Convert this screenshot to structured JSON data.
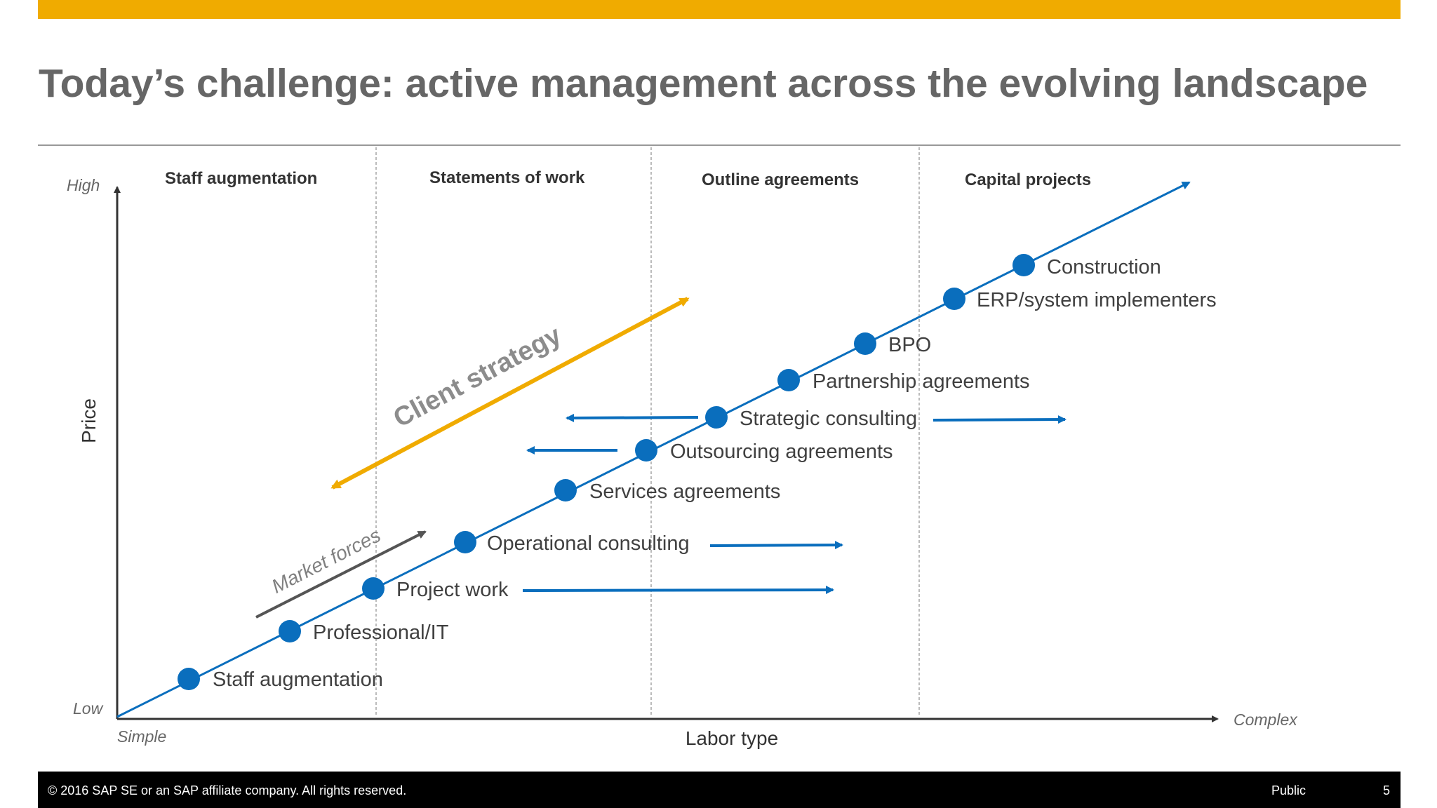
{
  "slide": {
    "title": "Today’s challenge: active management across the evolving landscape",
    "accent_color": "#f0ab00"
  },
  "diagram": {
    "columns": [
      {
        "label": "Staff augmentation"
      },
      {
        "label": "Statements of work"
      },
      {
        "label": "Outline agreements"
      },
      {
        "label": "Capital projects"
      }
    ],
    "y_axis": {
      "label": "Price",
      "high": "High",
      "low": "Low"
    },
    "x_axis": {
      "label": "Labor type",
      "left": "Simple",
      "right": "Complex"
    },
    "points": [
      {
        "label": "Staff augmentation"
      },
      {
        "label": "Professional/IT"
      },
      {
        "label": "Project work"
      },
      {
        "label": "Operational consulting"
      },
      {
        "label": "Services agreements"
      },
      {
        "label": "Outsourcing agreements"
      },
      {
        "label": "Strategic consulting"
      },
      {
        "label": "Partnership agreements"
      },
      {
        "label": "BPO"
      },
      {
        "label": "ERP/system implementers"
      },
      {
        "label": "Construction"
      }
    ],
    "client_strategy": {
      "label": "Client strategy",
      "color": "#f0ab00"
    },
    "market_forces": {
      "label": "Market forces"
    },
    "trend_color": "#0a6ebd"
  },
  "footer": {
    "copyright": "© 2016 SAP SE or an SAP affiliate company. All rights reserved.",
    "classification": "Public",
    "page_number": "5"
  }
}
